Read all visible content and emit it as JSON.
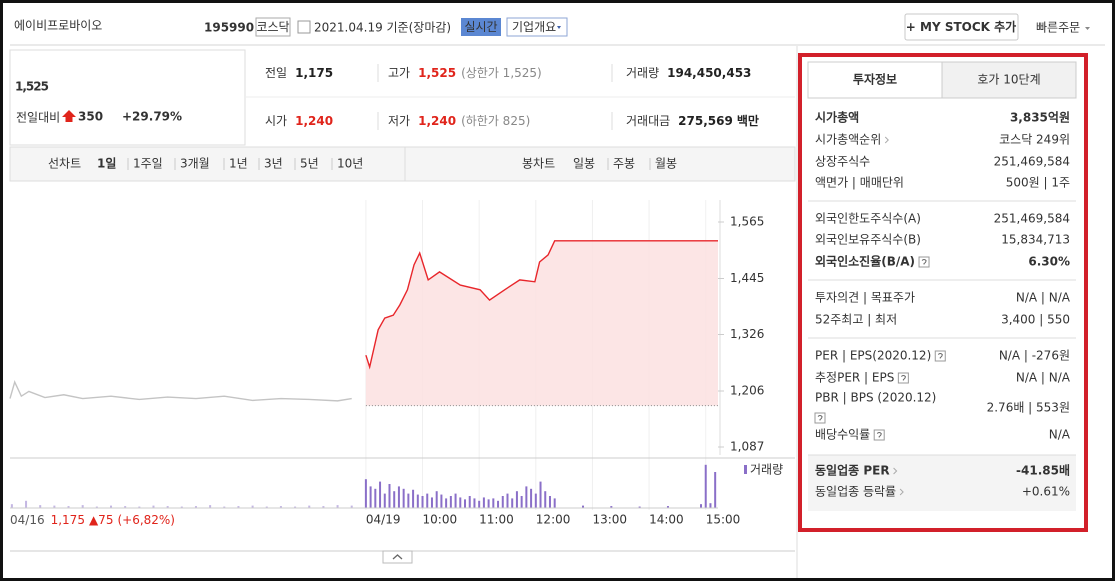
{
  "header": {
    "title": "에이비프로바이오",
    "code": "195990",
    "market": "코스닥",
    "date": "2021.04.19 기준(장마감)",
    "realtime": "실시간",
    "company_menu": "기업개요",
    "mystock": "+ MY STOCK 추가",
    "quick_order": "빠른주문"
  },
  "price": {
    "current": "1,525",
    "change_label": "전일대비",
    "change": "350",
    "change_rate": "+29.79%"
  },
  "summary": [
    [
      {
        "label": "전일",
        "value": "1,175"
      },
      {
        "label": "고가",
        "value": "1,525",
        "note": "(상한가 1,525)"
      },
      {
        "label": "거래량",
        "value": "194,450,453"
      }
    ],
    [
      {
        "label": "시가",
        "value": "1,240"
      },
      {
        "label": "저가",
        "value": "1,240",
        "note": "(하한가 825)"
      },
      {
        "label": "거래대금",
        "value": "275,569",
        "unit": "백만"
      }
    ]
  ],
  "tabs": {
    "line_label": "선차트",
    "line": [
      "1일",
      "1주일",
      "3개월",
      "1년",
      "3년",
      "5년",
      "10년"
    ],
    "candle_label": "봉차트",
    "candle": [
      "일봉",
      "주봉",
      "월봉"
    ]
  },
  "chart_data": {
    "type": "line",
    "xlim": [
      -377,
      373
    ],
    "xticks": [
      {
        "value": 0,
        "label": "04/19"
      },
      {
        "value": 60,
        "label": "10:00"
      },
      {
        "value": 120,
        "label": "11:00"
      },
      {
        "value": 180,
        "label": "12:00"
      },
      {
        "value": 240,
        "label": "13:00"
      },
      {
        "value": 300,
        "label": "14:00"
      },
      {
        "value": 360,
        "label": "15:00"
      }
    ],
    "ylim": [
      1087,
      1565
    ],
    "yticks": [
      {
        "value": 1565,
        "label": "1,565"
      },
      {
        "value": 1445,
        "label": "1,445"
      },
      {
        "value": 1326,
        "label": "1,326"
      },
      {
        "value": 1206,
        "label": "1,206"
      },
      {
        "value": 1087,
        "label": "1,087"
      }
    ],
    "baseline": 1175,
    "series": [
      {
        "color": "#c4c4c4",
        "x": [
          -377,
          -372,
          -365,
          -357,
          -340,
          -320,
          -300,
          -270,
          -240,
          -210,
          -180,
          -150,
          -120,
          -90,
          -60,
          -30,
          -15
        ],
        "values": [
          1190,
          1225,
          1195,
          1205,
          1192,
          1198,
          1190,
          1195,
          1188,
          1193,
          1190,
          1195,
          1186,
          1190,
          1188,
          1185,
          1190
        ]
      },
      {
        "color": "#e8262b",
        "area_color": "#fbe0e0",
        "x": [
          0,
          4,
          13,
          20,
          29,
          36,
          44,
          51,
          57,
          66,
          78,
          100,
          121,
          131,
          147,
          163,
          179,
          184,
          193,
          200,
          373
        ],
        "values": [
          1282,
          1257,
          1336,
          1361,
          1367,
          1389,
          1421,
          1474,
          1499,
          1442,
          1459,
          1431,
          1421,
          1399,
          1421,
          1442,
          1438,
          1480,
          1495,
          1525,
          1525
        ]
      }
    ],
    "volume_label": "거래량",
    "volume": {
      "color": "#8a6fc8",
      "ylim": [
        0,
        100
      ],
      "x": [
        -375,
        -360,
        -345,
        -330,
        -315,
        -300,
        -285,
        -270,
        -255,
        -240,
        -225,
        -210,
        -195,
        -180,
        -165,
        -150,
        -135,
        -120,
        -105,
        -90,
        -75,
        -60,
        -45,
        -30,
        -15,
        0,
        5,
        10,
        15,
        20,
        25,
        30,
        35,
        40,
        45,
        50,
        55,
        60,
        65,
        70,
        75,
        80,
        85,
        90,
        95,
        100,
        105,
        110,
        115,
        120,
        125,
        130,
        135,
        140,
        145,
        150,
        155,
        160,
        165,
        170,
        175,
        180,
        185,
        190,
        195,
        200,
        230,
        260,
        290,
        320,
        355,
        360,
        365,
        370
      ],
      "values": [
        8,
        15,
        6,
        5,
        4,
        6,
        3,
        5,
        4,
        3,
        5,
        4,
        3,
        4,
        6,
        3,
        4,
        5,
        3,
        4,
        3,
        5,
        4,
        6,
        5,
        60,
        45,
        40,
        55,
        30,
        50,
        35,
        45,
        40,
        30,
        38,
        28,
        25,
        30,
        22,
        35,
        28,
        20,
        25,
        30,
        22,
        18,
        25,
        20,
        15,
        22,
        18,
        20,
        15,
        25,
        30,
        20,
        35,
        25,
        45,
        40,
        30,
        55,
        35,
        25,
        20,
        5,
        4,
        3,
        4,
        8,
        90,
        10,
        75
      ]
    },
    "prev_caption": {
      "date": "04/16",
      "price": "1,175",
      "change": "▲75",
      "rate": "(+6,82%)"
    }
  },
  "panel": {
    "tabs": [
      "투자정보",
      "호가 10단계"
    ],
    "groups": [
      {
        "rows": [
          {
            "label": "시가총액",
            "value": "3,835억원"
          },
          {
            "label": "시가총액순위",
            "value": "코스닥 249위"
          },
          {
            "label": "상장주식수",
            "value": "251,469,584"
          },
          {
            "label": "액면가 | 매매단위",
            "value": "500원 | 1주"
          }
        ]
      },
      {
        "rows": [
          {
            "label": "외국인한도주식수(A)",
            "value": "251,469,584"
          },
          {
            "label": "외국인보유주식수(B)",
            "value": "15,834,713"
          },
          {
            "label": "외국인소진율(B/A)",
            "value": "6.30%"
          }
        ]
      },
      {
        "rows": [
          {
            "label": "투자의견 | 목표주가",
            "value": "N/A | N/A"
          },
          {
            "label": "52주최고 | 최저",
            "value": "3,400 | 550"
          }
        ]
      },
      {
        "rows": [
          {
            "label": "PER | EPS(2020.12)",
            "value": "N/A | -276원"
          },
          {
            "label": "추정PER | EPS",
            "value": "N/A | N/A"
          },
          {
            "label": "PBR | BPS (2020.12)",
            "value": "2.76배 | 553원"
          },
          {
            "label": "배당수익률",
            "value": "N/A"
          }
        ]
      },
      {
        "rows": [
          {
            "label": "동일업종 PER",
            "value": "-41.85배"
          },
          {
            "label": "동일업종 등락률",
            "value": "+0.61%"
          }
        ]
      }
    ]
  }
}
